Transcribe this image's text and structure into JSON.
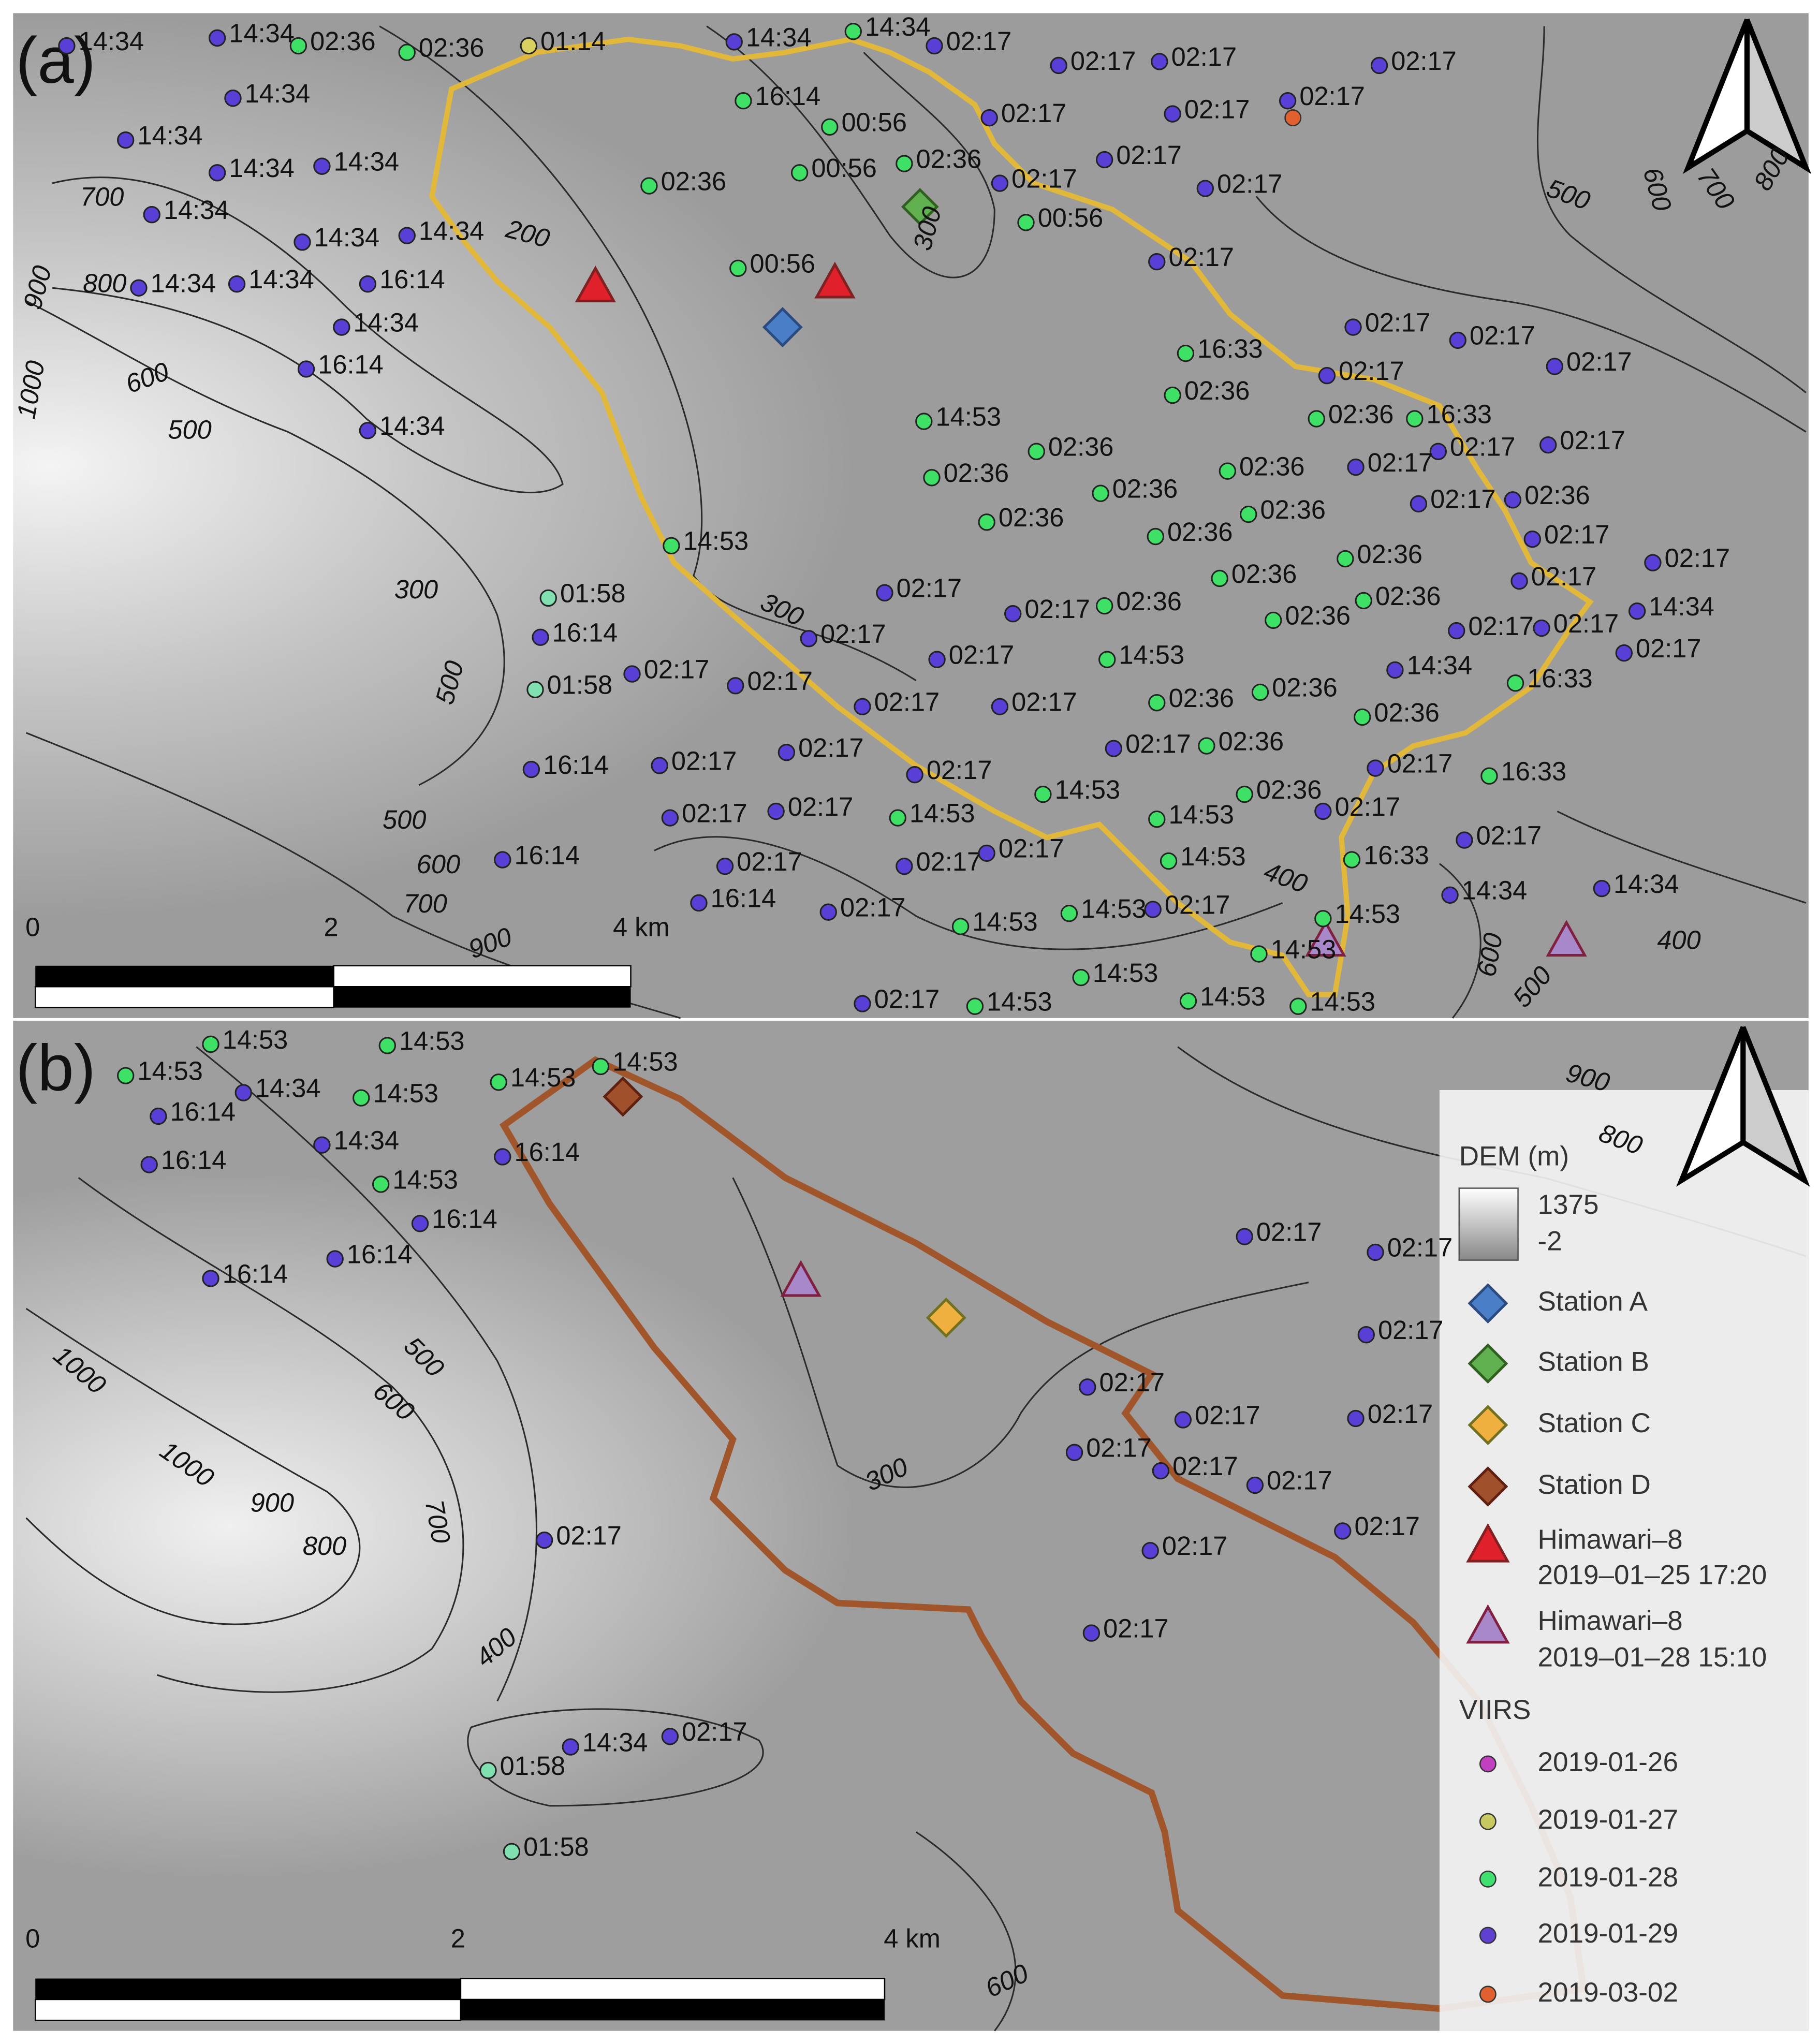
{
  "panel_a": {
    "label": "(a)",
    "time_labels": [
      "14:34",
      "14:34",
      "02:36",
      "02:36",
      "01:14",
      "14:34",
      "14:34",
      "14:34",
      "14:34",
      "14:34",
      "14:34",
      "14:34",
      "14:34",
      "14:34",
      "16:14",
      "14:34",
      "16:14",
      "14:34",
      "02:36",
      "00:56",
      "14:34",
      "14:34",
      "16:14",
      "00:56",
      "00:56",
      "02:36",
      "02:17",
      "02:17",
      "02:17",
      "02:17",
      "02:17",
      "02:17",
      "02:17",
      "02:17",
      "02:17",
      "02:17",
      "00:56",
      "02:17",
      "02:17",
      "02:17",
      "02:17",
      "16:33",
      "02:17",
      "02:36",
      "02:36",
      "16:33",
      "02:17",
      "02:17",
      "02:17",
      "14:53",
      "02:36",
      "02:36",
      "02:36",
      "02:36",
      "02:36",
      "02:36",
      "02:36",
      "02:17",
      "02:36",
      "02:17",
      "02:17",
      "02:36",
      "02:36",
      "02:17",
      "02:36",
      "14:34",
      "02:17",
      "02:17",
      "02:17",
      "02:36",
      "02:36",
      "14:53",
      "14:53",
      "01:58",
      "16:14",
      "01:58",
      "02:17",
      "02:17",
      "02:17",
      "02:17",
      "02:17",
      "02:17",
      "14:34",
      "16:33",
      "02:36",
      "02:36",
      "02:36",
      "02:17",
      "02:17",
      "16:14",
      "02:17",
      "02:17",
      "02:17",
      "02:17",
      "02:36",
      "02:17",
      "16:33",
      "14:53",
      "02:36",
      "02:17",
      "02:17",
      "14:53",
      "14:53",
      "02:17",
      "02:17",
      "16:14",
      "02:17",
      "02:17",
      "02:17",
      "14:53",
      "16:33",
      "16:14",
      "02:17",
      "02:17",
      "14:34",
      "14:34",
      "14:53",
      "14:53",
      "14:53",
      "14:53",
      "14:53",
      "02:17",
      "14:53",
      "14:53",
      "14:53"
    ],
    "contour_labels": [
      "700",
      "800",
      "900",
      "1000",
      "600",
      "500",
      "200",
      "300",
      "500",
      "600",
      "700",
      "800",
      "300",
      "300",
      "500",
      "500",
      "600",
      "700",
      "900",
      "400",
      "400",
      "600",
      "500"
    ],
    "scale_labels": [
      "0",
      "2",
      "4 km"
    ]
  },
  "panel_b": {
    "label": "(b)",
    "time_labels": [
      "14:53",
      "14:53",
      "14:34",
      "14:53",
      "14:53",
      "14:53",
      "14:53",
      "16:14",
      "16:14",
      "14:34",
      "16:14",
      "14:53",
      "16:14",
      "16:14",
      "16:14",
      "02:17",
      "02:17",
      "02:17",
      "02:17",
      "02:17",
      "02:17",
      "02:17",
      "02:17",
      "02:17",
      "02:17",
      "02:17",
      "02:17",
      "02:17",
      "14:34",
      "02:17",
      "01:58",
      "01:58"
    ],
    "contour_labels": [
      "900",
      "800",
      "1000",
      "1000",
      "900",
      "800",
      "700",
      "600",
      "500",
      "400",
      "300",
      "600"
    ],
    "scale_labels": [
      "0",
      "2",
      "4 km"
    ]
  },
  "legend": {
    "dem_title": "DEM (m)",
    "dem_max": "1375",
    "dem_min": "-2",
    "stations": [
      "Station A",
      "Station B",
      "Station C",
      "Station D"
    ],
    "himawari": [
      {
        "name": "Himawari–8",
        "time": "2019–01–25 17:20"
      },
      {
        "name": "Himawari–8",
        "time": "2019–01–28 15:10"
      }
    ],
    "viirs_title": "VIIRS",
    "viirs_dates": [
      "2019-01-26",
      "2019-01-27",
      "2019-01-28",
      "2019-01-29",
      "2019-03-02"
    ]
  }
}
